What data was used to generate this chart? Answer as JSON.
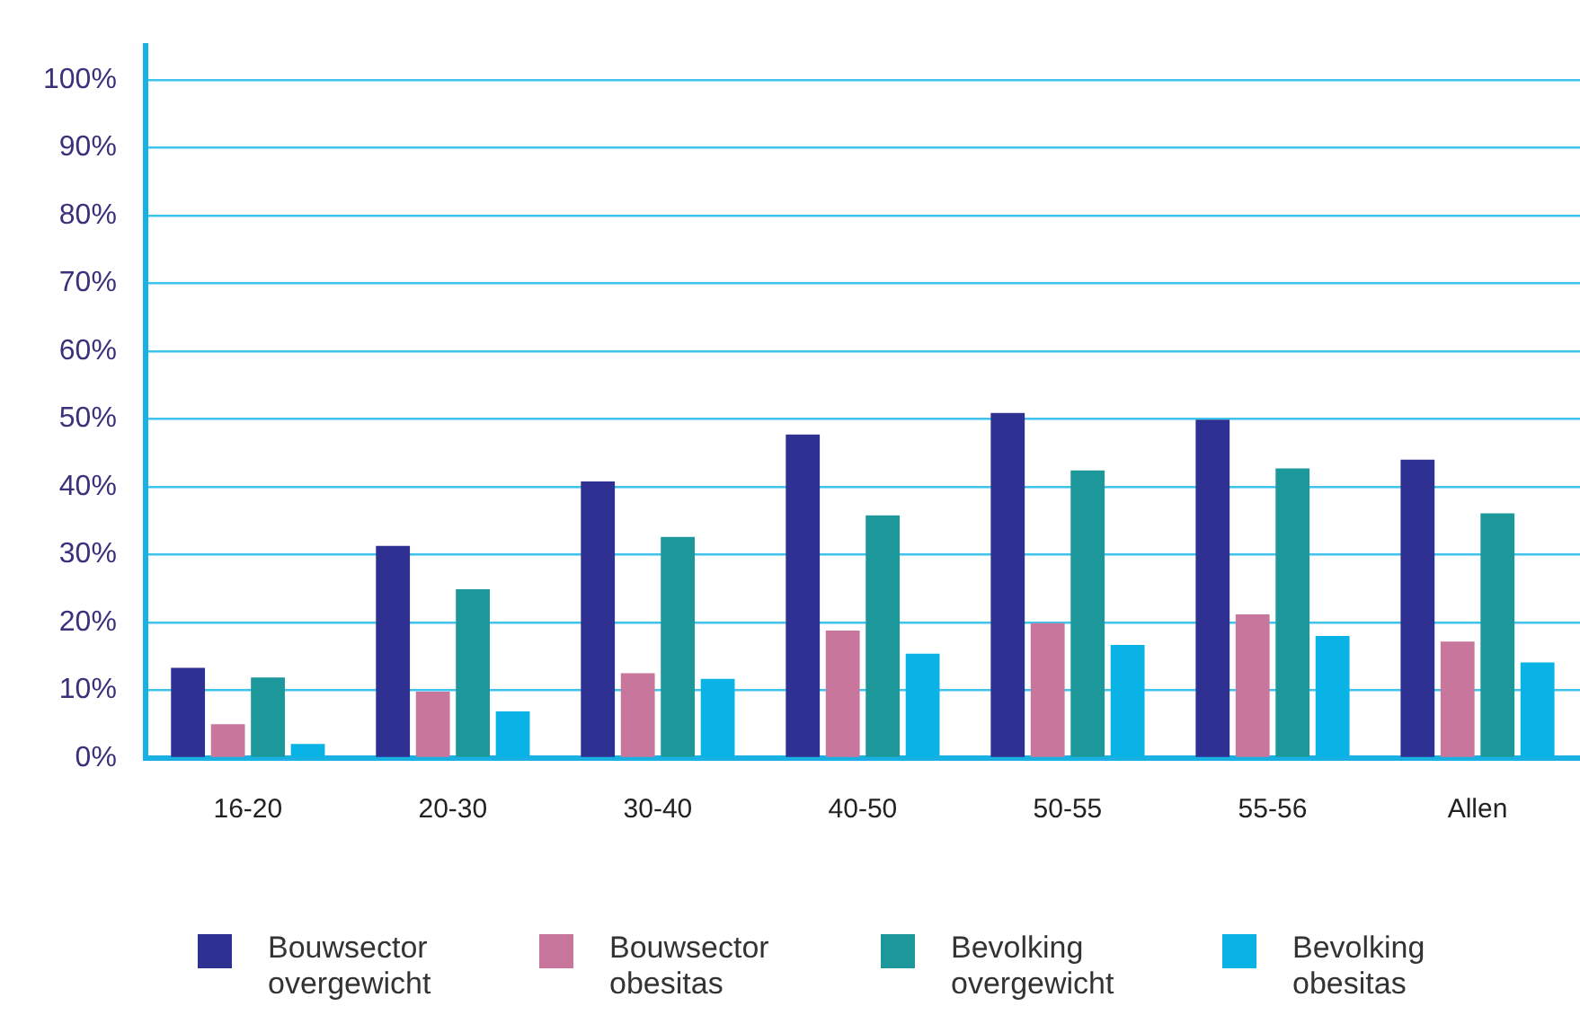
{
  "chart_data": {
    "type": "bar",
    "categories": [
      "16-20",
      "20-30",
      "30-40",
      "40-50",
      "50-55",
      "55-56",
      "Allen"
    ],
    "series": [
      {
        "name": "Bouwsector overgewicht",
        "color": "#2e3192",
        "values": [
          13.3,
          31.3,
          40.8,
          47.7,
          50.9,
          49.9,
          44.0
        ]
      },
      {
        "name": "Bouwsector obesitas",
        "color": "#c8769c",
        "values": [
          5.0,
          9.8,
          12.5,
          18.8,
          19.9,
          21.2,
          17.2
        ]
      },
      {
        "name": "Bevolking overgewicht",
        "color": "#1c989b",
        "values": [
          11.9,
          24.9,
          32.6,
          35.8,
          42.4,
          42.7,
          36.1
        ]
      },
      {
        "name": "Bevolking obesitas",
        "color": "#0ab3e6",
        "values": [
          2.1,
          6.9,
          11.7,
          15.4,
          16.7,
          18.0,
          14.1
        ]
      }
    ],
    "ylim": [
      0,
      105
    ],
    "yticks": [
      {
        "value": 0,
        "label": "0%"
      },
      {
        "value": 10,
        "label": "10%"
      },
      {
        "value": 20,
        "label": "20%"
      },
      {
        "value": 30,
        "label": "30%"
      },
      {
        "value": 40,
        "label": "40%"
      },
      {
        "value": 50,
        "label": "50%"
      },
      {
        "value": 60,
        "label": "60%"
      },
      {
        "value": 70,
        "label": "70%"
      },
      {
        "value": 80,
        "label": "80%"
      },
      {
        "value": 90,
        "label": "90%"
      },
      {
        "value": 100,
        "label": "100%"
      }
    ],
    "grid": "y",
    "legend": "bottom"
  }
}
